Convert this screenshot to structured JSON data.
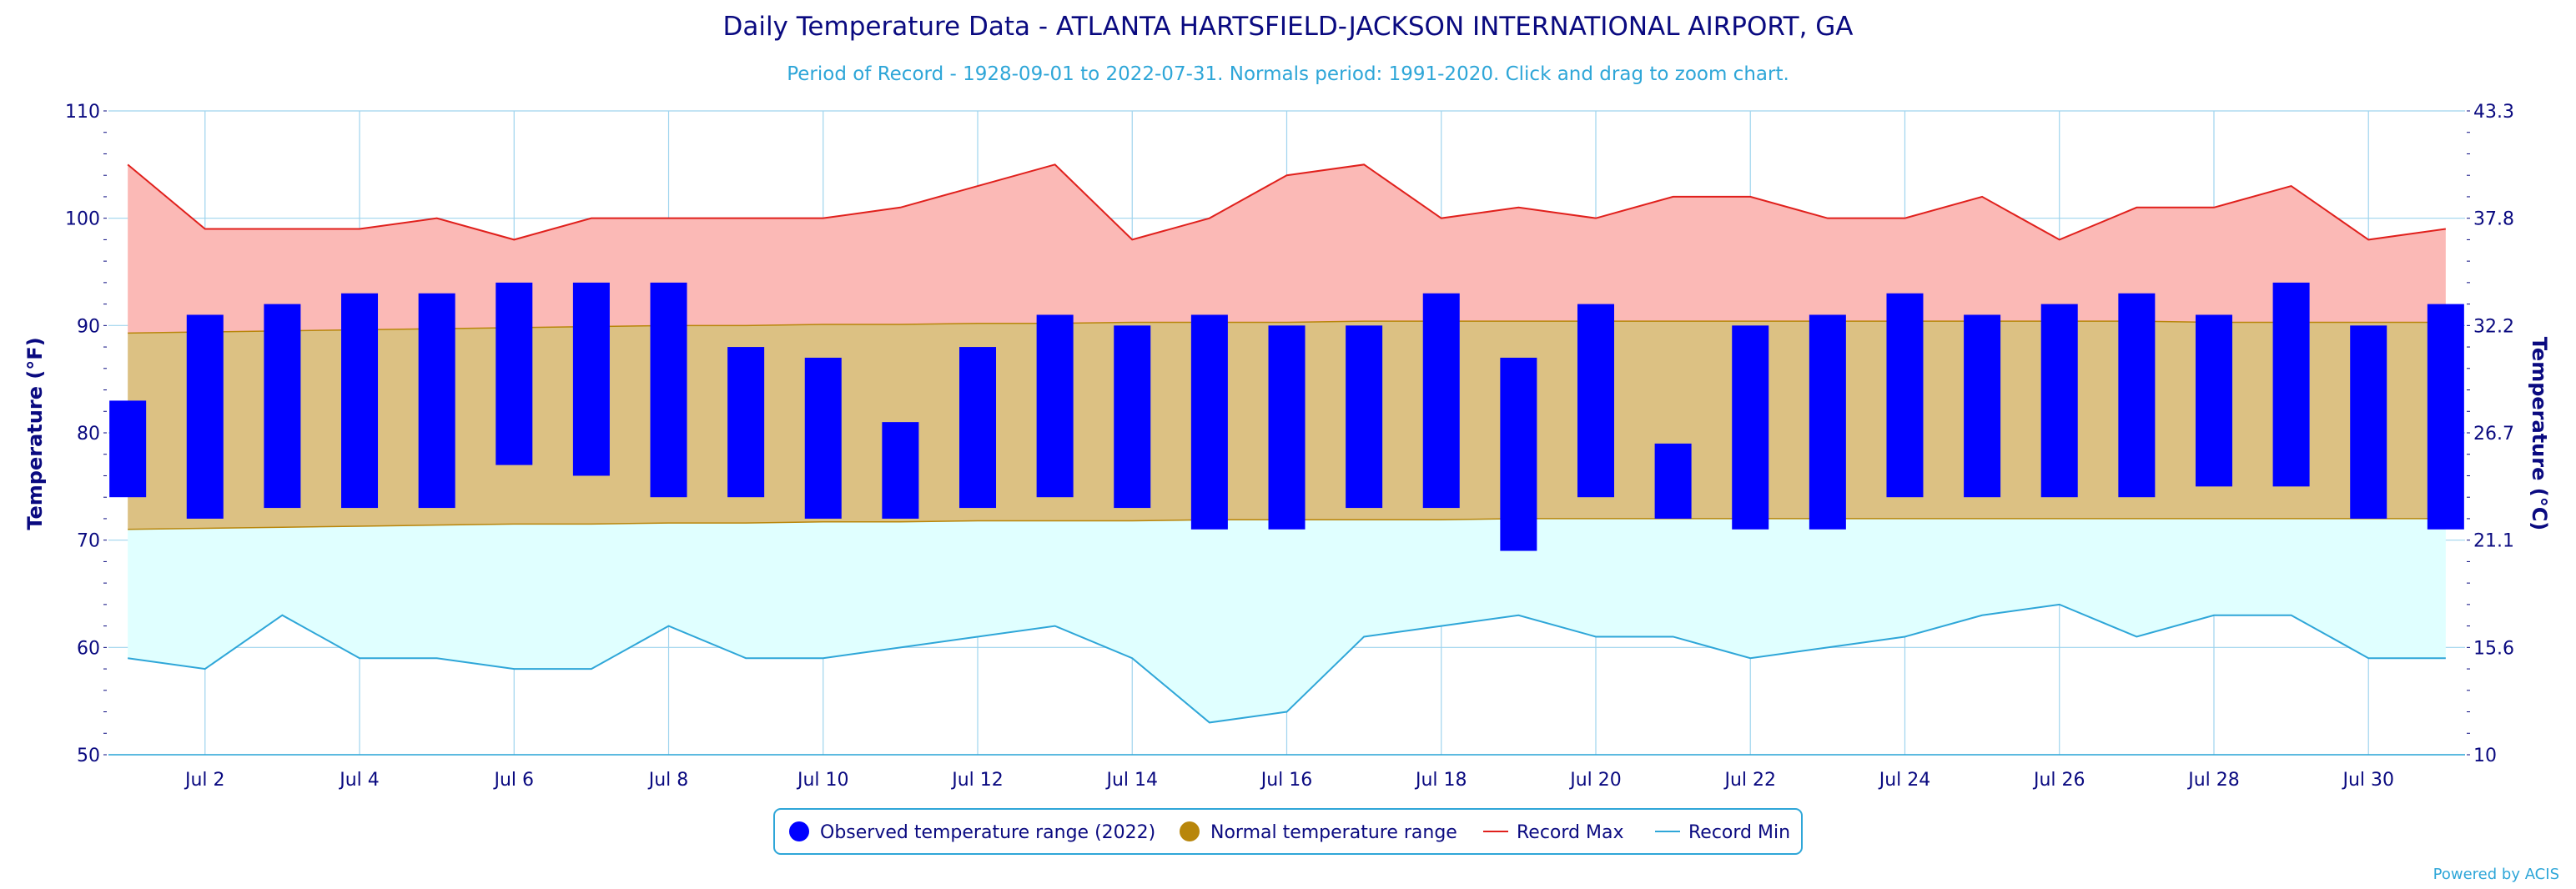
{
  "chart_data": {
    "type": "bar",
    "title": "Daily Temperature Data - ATLANTA HARTSFIELD-JACKSON INTERNATIONAL AIRPORT, GA",
    "subtitle": "Period of Record - 1928-09-01 to 2022-07-31. Normals period: 1991-2020. Click and drag to zoom chart.",
    "ylabel": "Temperature (°F)",
    "ylabel_right": "Temperature (°C)",
    "ylim": [
      50,
      110
    ],
    "y_ticks": [
      "50",
      "60",
      "70",
      "80",
      "90",
      "100",
      "110"
    ],
    "y_ticks_right": [
      "10",
      "15.6",
      "21.1",
      "26.7",
      "32.2",
      "37.8",
      "43.3"
    ],
    "x_ticks": [
      {
        "day": 2,
        "label": "Jul 2"
      },
      {
        "day": 4,
        "label": "Jul 4"
      },
      {
        "day": 6,
        "label": "Jul 6"
      },
      {
        "day": 8,
        "label": "Jul 8"
      },
      {
        "day": 10,
        "label": "Jul 10"
      },
      {
        "day": 12,
        "label": "Jul 12"
      },
      {
        "day": 14,
        "label": "Jul 14"
      },
      {
        "day": 16,
        "label": "Jul 16"
      },
      {
        "day": 18,
        "label": "Jul 18"
      },
      {
        "day": 20,
        "label": "Jul 20"
      },
      {
        "day": 22,
        "label": "Jul 22"
      },
      {
        "day": 24,
        "label": "Jul 24"
      },
      {
        "day": 26,
        "label": "Jul 26"
      },
      {
        "day": 28,
        "label": "Jul 28"
      },
      {
        "day": 30,
        "label": "Jul 30"
      }
    ],
    "x": [
      1,
      2,
      3,
      4,
      5,
      6,
      7,
      8,
      9,
      10,
      11,
      12,
      13,
      14,
      15,
      16,
      17,
      18,
      19,
      20,
      21,
      22,
      23,
      24,
      25,
      26,
      27,
      28,
      29,
      30,
      31
    ],
    "series": [
      {
        "name": "Observed temperature range (2022)",
        "color": "#0000ff",
        "high": [
          83,
          91,
          92,
          93,
          93,
          94,
          94,
          94,
          88,
          87,
          81,
          88,
          91,
          90,
          91,
          90,
          90,
          93,
          87,
          92,
          79,
          90,
          91,
          93,
          91,
          92,
          93,
          91,
          94,
          90,
          92
        ],
        "low": [
          74,
          72,
          73,
          73,
          73,
          77,
          76,
          74,
          74,
          72,
          72,
          73,
          74,
          73,
          71,
          71,
          73,
          73,
          69,
          74,
          72,
          71,
          71,
          74,
          74,
          74,
          74,
          75,
          75,
          72,
          71
        ]
      },
      {
        "name": "Normal temperature range",
        "color": "#b8860b",
        "high": [
          89.3,
          89.4,
          89.5,
          89.6,
          89.7,
          89.8,
          89.9,
          90.0,
          90.0,
          90.1,
          90.1,
          90.2,
          90.2,
          90.3,
          90.3,
          90.3,
          90.4,
          90.4,
          90.4,
          90.4,
          90.4,
          90.4,
          90.4,
          90.4,
          90.4,
          90.4,
          90.4,
          90.3,
          90.3,
          90.3,
          90.3
        ],
        "low": [
          71.0,
          71.1,
          71.2,
          71.3,
          71.4,
          71.5,
          71.5,
          71.6,
          71.6,
          71.7,
          71.7,
          71.8,
          71.8,
          71.8,
          71.9,
          71.9,
          71.9,
          71.9,
          72.0,
          72.0,
          72.0,
          72.0,
          72.0,
          72.0,
          72.0,
          72.0,
          72.0,
          72.0,
          72.0,
          72.0,
          72.0
        ]
      },
      {
        "name": "Record Max",
        "color": "#e0201c",
        "values": [
          105,
          99,
          99,
          99,
          100,
          98,
          100,
          100,
          100,
          100,
          101,
          103,
          105,
          98,
          100,
          104,
          105,
          100,
          101,
          100,
          102,
          102,
          100,
          100,
          102,
          98,
          101,
          101,
          103,
          98,
          99
        ]
      },
      {
        "name": "Record Min",
        "color": "#2ea6d8",
        "values": [
          59,
          58,
          63,
          59,
          59,
          58,
          58,
          62,
          59,
          59,
          60,
          61,
          62,
          59,
          53,
          54,
          61,
          62,
          63,
          61,
          61,
          59,
          60,
          61,
          63,
          64,
          61,
          63,
          63,
          59,
          59
        ]
      }
    ],
    "legend": [
      "Observed temperature range (2022)",
      "Normal temperature range",
      "Record Max",
      "Record Min"
    ],
    "legend_position": "bottom-center",
    "grid": true,
    "credit": "Powered by ACIS"
  }
}
